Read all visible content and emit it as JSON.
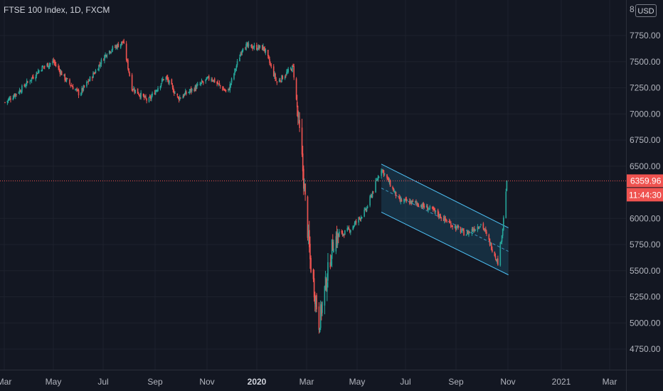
{
  "header": {
    "title": "FTSE 100 Index, 1D, FXCM"
  },
  "currency_button": "USD",
  "colors": {
    "background": "#131722",
    "grid": "#1e222d",
    "up": "#26a69a",
    "down": "#ef5350",
    "channel_stroke": "#4fc3f7",
    "channel_fill": "#1c5a78",
    "price_line": "#ef5350",
    "axis_text": "#b2b5be"
  },
  "price_axis": {
    "ticks": [
      "7750.00",
      "7500.00",
      "7250.00",
      "7000.00",
      "6750.00",
      "6500.00",
      "6000.00",
      "5750.00",
      "5500.00",
      "5250.00",
      "5000.00",
      "4750.00"
    ],
    "partial_top_label": "8"
  },
  "time_axis": {
    "labels": [
      {
        "text": "Mar",
        "bold": false
      },
      {
        "text": "May",
        "bold": false
      },
      {
        "text": "Jul",
        "bold": false
      },
      {
        "text": "Sep",
        "bold": false
      },
      {
        "text": "Nov",
        "bold": false
      },
      {
        "text": "2020",
        "bold": true
      },
      {
        "text": "Mar",
        "bold": false
      },
      {
        "text": "May",
        "bold": false
      },
      {
        "text": "Jul",
        "bold": false
      },
      {
        "text": "Sep",
        "bold": false
      },
      {
        "text": "Nov",
        "bold": false
      },
      {
        "text": "2021",
        "bold": false
      },
      {
        "text": "Mar",
        "bold": false
      }
    ]
  },
  "last_price": {
    "value": 6359.96,
    "label": "6359.96",
    "countdown": "11:44:30"
  },
  "chart_data": {
    "type": "candlestick",
    "title": "FTSE 100 Index, 1D, FXCM",
    "y_range": [
      4700,
      8000
    ],
    "x_range": [
      "2019-03-01",
      "2021-03-25"
    ],
    "last_date": "2020-11-10",
    "series_close": [
      {
        "date": "2019-03-01",
        "close": 7110
      },
      {
        "date": "2019-03-20",
        "close": 7230
      },
      {
        "date": "2019-04-15",
        "close": 7440
      },
      {
        "date": "2019-04-30",
        "close": 7500
      },
      {
        "date": "2019-05-15",
        "close": 7330
      },
      {
        "date": "2019-06-01",
        "close": 7190
      },
      {
        "date": "2019-06-20",
        "close": 7400
      },
      {
        "date": "2019-07-05",
        "close": 7590
      },
      {
        "date": "2019-07-25",
        "close": 7690
      },
      {
        "date": "2019-08-05",
        "close": 7250
      },
      {
        "date": "2019-08-25",
        "close": 7120
      },
      {
        "date": "2019-09-15",
        "close": 7360
      },
      {
        "date": "2019-10-01",
        "close": 7150
      },
      {
        "date": "2019-10-20",
        "close": 7240
      },
      {
        "date": "2019-11-10",
        "close": 7350
      },
      {
        "date": "2019-12-01",
        "close": 7200
      },
      {
        "date": "2019-12-20",
        "close": 7650
      },
      {
        "date": "2020-01-15",
        "close": 7630
      },
      {
        "date": "2020-01-31",
        "close": 7300
      },
      {
        "date": "2020-02-20",
        "close": 7450
      },
      {
        "date": "2020-03-01",
        "close": 6650
      },
      {
        "date": "2020-03-12",
        "close": 5600
      },
      {
        "date": "2020-03-23",
        "close": 5000
      },
      {
        "date": "2020-04-10",
        "close": 5800
      },
      {
        "date": "2020-05-01",
        "close": 5900
      },
      {
        "date": "2020-05-20",
        "close": 6080
      },
      {
        "date": "2020-06-08",
        "close": 6480
      },
      {
        "date": "2020-06-30",
        "close": 6170
      },
      {
        "date": "2020-07-20",
        "close": 6150
      },
      {
        "date": "2020-08-10",
        "close": 6080
      },
      {
        "date": "2020-09-01",
        "close": 5950
      },
      {
        "date": "2020-09-20",
        "close": 5850
      },
      {
        "date": "2020-10-10",
        "close": 5950
      },
      {
        "date": "2020-10-30",
        "close": 5580
      },
      {
        "date": "2020-11-05",
        "close": 5910
      },
      {
        "date": "2020-11-10",
        "close": 6359.96
      }
    ],
    "channel": {
      "upper": [
        {
          "date": "2020-06-08",
          "value": 6520
        },
        {
          "date": "2020-11-12",
          "value": 5910
        }
      ],
      "lower": [
        {
          "date": "2020-06-08",
          "value": 6060
        },
        {
          "date": "2020-11-12",
          "value": 5460
        }
      ]
    }
  }
}
